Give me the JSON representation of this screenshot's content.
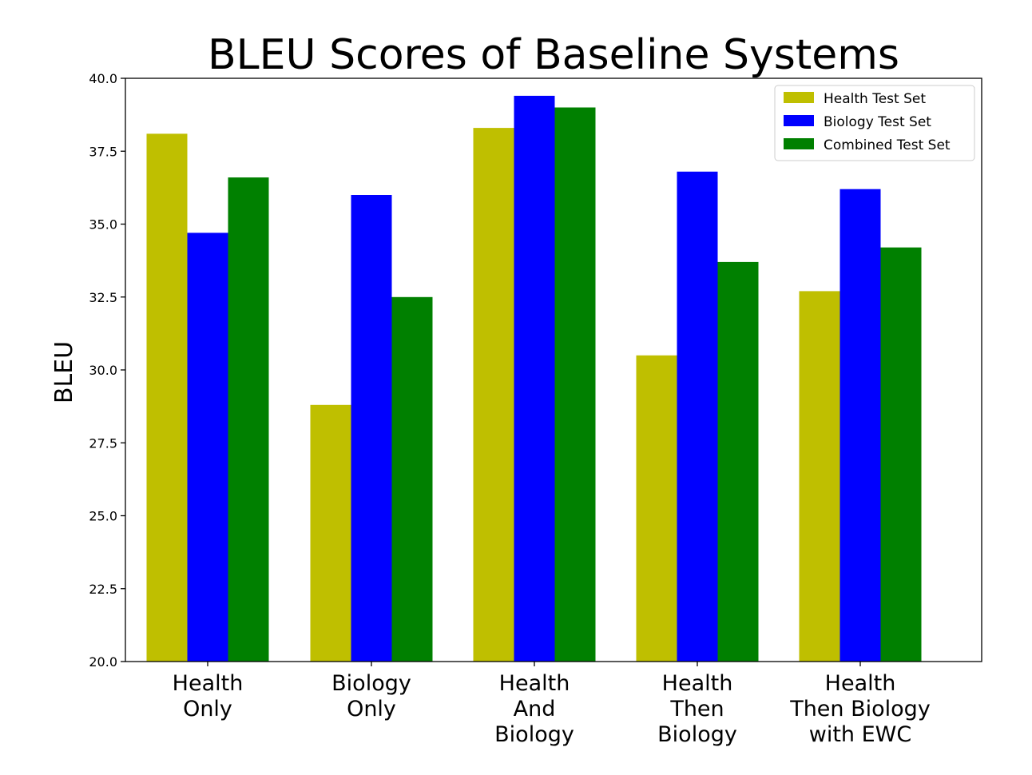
{
  "chart_data": {
    "type": "bar",
    "title": "BLEU Scores of Baseline Systems",
    "xlabel": "",
    "ylabel": "BLEU",
    "ylim": [
      20.0,
      40.0
    ],
    "yticks": [
      "20.0",
      "22.5",
      "25.0",
      "27.5",
      "30.0",
      "32.5",
      "35.0",
      "37.5",
      "40.0"
    ],
    "categories": [
      [
        "Health",
        "Only"
      ],
      [
        "Biology",
        "Only"
      ],
      [
        "Health",
        "And",
        "Biology"
      ],
      [
        "Health",
        "Then",
        "Biology"
      ],
      [
        "Health",
        "Then Biology",
        "with EWC"
      ]
    ],
    "series": [
      {
        "name": "Health Test Set",
        "color": "#bfbf00",
        "values": [
          38.1,
          28.8,
          38.3,
          30.5,
          32.7
        ]
      },
      {
        "name": "Biology Test Set",
        "color": "#0000ff",
        "values": [
          34.7,
          36.0,
          39.4,
          36.8,
          36.2
        ]
      },
      {
        "name": "Combined Test Set",
        "color": "#008000",
        "values": [
          36.6,
          32.5,
          39.0,
          33.7,
          34.2
        ]
      }
    ],
    "legend_position": "top-right",
    "grid": false
  }
}
